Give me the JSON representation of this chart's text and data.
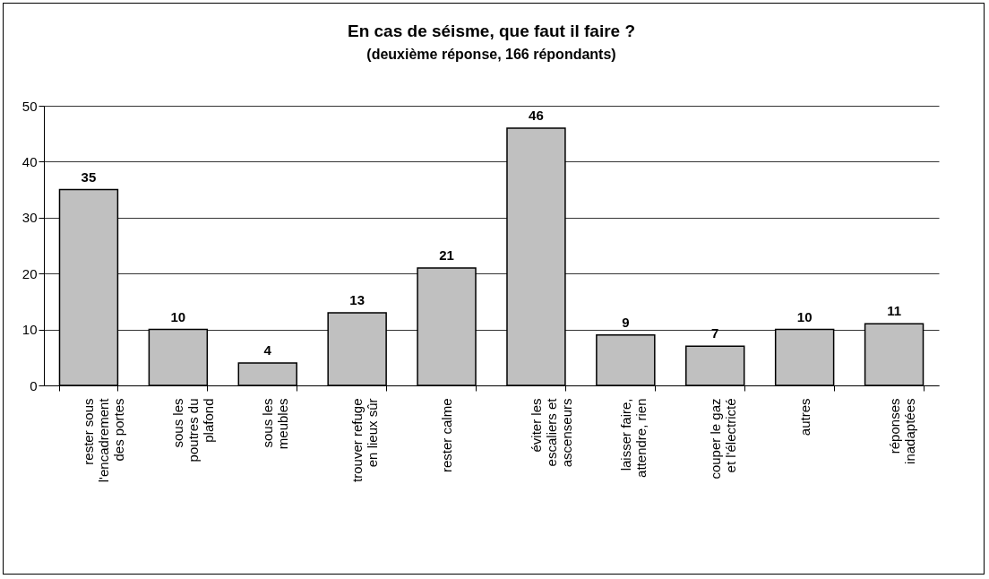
{
  "chart_data": {
    "type": "bar",
    "title": "En cas de séisme, que faut il faire ?",
    "subtitle": "(deuxième réponse, 166 répondants)",
    "categories": [
      "rester sous l'encadrement des portes",
      "sous les poutres du plafond",
      "sous les meubles",
      "trouver refuge en lieux sûr",
      "rester calme",
      "éviter les escaliers et ascenseurs",
      "laisser faire, attendre, rien",
      "couper le gaz et l'électricté",
      "autres",
      "réponses inadaptées"
    ],
    "values": [
      35,
      10,
      4,
      13,
      21,
      46,
      9,
      7,
      10,
      11
    ],
    "color": "#c0c0c0",
    "ylim": [
      0,
      50
    ],
    "yticks": [
      0,
      10,
      20,
      30,
      40,
      50
    ],
    "grid": "y",
    "data_labels": true
  }
}
